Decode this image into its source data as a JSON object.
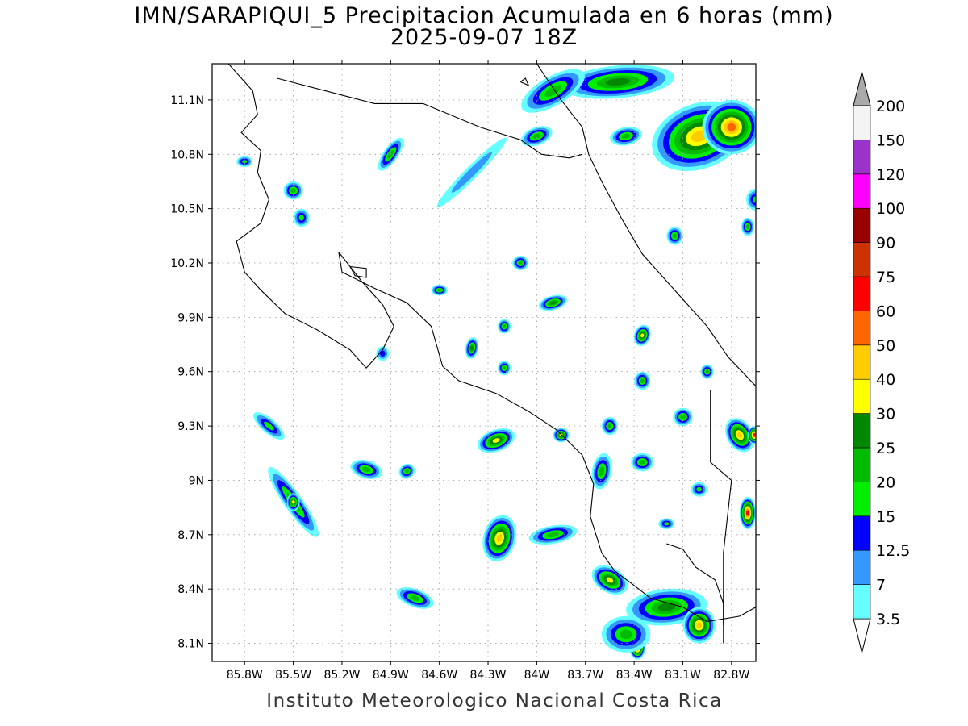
{
  "title": "IMN/SARAPIQUI_5 Precipitacion Acumulada en 6 horas (mm)",
  "subtitle": "2025-09-07 18Z",
  "footer": "Instituto Meteorologico Nacional Costa Rica",
  "map": {
    "lon_range": [
      -86.0,
      -82.65
    ],
    "lat_range": [
      8.0,
      11.3
    ],
    "lon_ticks": [
      {
        "value": -85.8,
        "label": "85.8W"
      },
      {
        "value": -85.5,
        "label": "85.5W"
      },
      {
        "value": -85.2,
        "label": "85.2W"
      },
      {
        "value": -84.9,
        "label": "84.9W"
      },
      {
        "value": -84.6,
        "label": "84.6W"
      },
      {
        "value": -84.3,
        "label": "84.3W"
      },
      {
        "value": -84.0,
        "label": "84W"
      },
      {
        "value": -83.7,
        "label": "83.7W"
      },
      {
        "value": -83.4,
        "label": "83.4W"
      },
      {
        "value": -83.1,
        "label": "83.1W"
      },
      {
        "value": -82.8,
        "label": "82.8W"
      }
    ],
    "lat_ticks": [
      {
        "value": 11.1,
        "label": "11.1N"
      },
      {
        "value": 10.8,
        "label": "10.8N"
      },
      {
        "value": 10.5,
        "label": "10.5N"
      },
      {
        "value": 10.2,
        "label": "10.2N"
      },
      {
        "value": 9.9,
        "label": "9.9N"
      },
      {
        "value": 9.6,
        "label": "9.6N"
      },
      {
        "value": 9.3,
        "label": "9.3N"
      },
      {
        "value": 9.0,
        "label": "9N"
      },
      {
        "value": 8.7,
        "label": "8.7N"
      },
      {
        "value": 8.4,
        "label": "8.4N"
      },
      {
        "value": 8.1,
        "label": "8.1N"
      }
    ],
    "grid": true
  },
  "legend": {
    "levels": [
      {
        "label": "3.5",
        "color": "#66ffff"
      },
      {
        "label": "7",
        "color": "#3399ff"
      },
      {
        "label": "12.5",
        "color": "#0000ff"
      },
      {
        "label": "15",
        "color": "#00ee00"
      },
      {
        "label": "20",
        "color": "#00bb00"
      },
      {
        "label": "25",
        "color": "#008800"
      },
      {
        "label": "30",
        "color": "#ffff00"
      },
      {
        "label": "40",
        "color": "#ffcc00"
      },
      {
        "label": "50",
        "color": "#ff6600"
      },
      {
        "label": "60",
        "color": "#ff0000"
      },
      {
        "label": "75",
        "color": "#cc3300"
      },
      {
        "label": "90",
        "color": "#990000"
      },
      {
        "label": "100",
        "color": "#ff00ff"
      },
      {
        "label": "120",
        "color": "#9933cc"
      },
      {
        "label": "150",
        "color": "#f4f4f4"
      },
      {
        "label": "200",
        "color": "#aaaaaa"
      }
    ],
    "below_color": "#ffffff",
    "above_color": "#aaaaaa"
  },
  "precip_cells": [
    {
      "lon": -83.0,
      "lat": 10.9,
      "rx": 0.3,
      "ry": 0.18,
      "rot": -20,
      "level": 7
    },
    {
      "lon": -82.8,
      "lat": 10.95,
      "rx": 0.18,
      "ry": 0.15,
      "rot": 0,
      "level": 8
    },
    {
      "lon": -83.5,
      "lat": 11.2,
      "rx": 0.35,
      "ry": 0.09,
      "rot": -5,
      "level": 5
    },
    {
      "lon": -83.9,
      "lat": 11.15,
      "rx": 0.22,
      "ry": 0.08,
      "rot": -30,
      "level": 4
    },
    {
      "lon": -84.0,
      "lat": 10.9,
      "rx": 0.1,
      "ry": 0.05,
      "rot": -20,
      "level": 4
    },
    {
      "lon": -84.9,
      "lat": 10.8,
      "rx": 0.12,
      "ry": 0.04,
      "rot": -55,
      "level": 4
    },
    {
      "lon": -85.5,
      "lat": 10.6,
      "rx": 0.06,
      "ry": 0.05,
      "rot": 0,
      "level": 4
    },
    {
      "lon": -84.4,
      "lat": 10.7,
      "rx": 0.3,
      "ry": 0.035,
      "rot": -45,
      "level": 1
    },
    {
      "lon": -84.1,
      "lat": 10.2,
      "rx": 0.05,
      "ry": 0.04,
      "rot": 0,
      "level": 4
    },
    {
      "lon": -83.9,
      "lat": 9.98,
      "rx": 0.09,
      "ry": 0.04,
      "rot": -15,
      "level": 5
    },
    {
      "lon": -84.6,
      "lat": 10.05,
      "rx": 0.05,
      "ry": 0.03,
      "rot": 0,
      "level": 4
    },
    {
      "lon": -84.4,
      "lat": 9.73,
      "rx": 0.04,
      "ry": 0.06,
      "rot": 10,
      "level": 5
    },
    {
      "lon": -84.2,
      "lat": 9.85,
      "rx": 0.04,
      "ry": 0.04,
      "rot": 0,
      "level": 4
    },
    {
      "lon": -84.2,
      "lat": 9.62,
      "rx": 0.04,
      "ry": 0.04,
      "rot": 0,
      "level": 4
    },
    {
      "lon": -83.35,
      "lat": 9.8,
      "rx": 0.05,
      "ry": 0.06,
      "rot": 20,
      "level": 6
    },
    {
      "lon": -83.35,
      "lat": 9.55,
      "rx": 0.05,
      "ry": 0.05,
      "rot": 0,
      "level": 4
    },
    {
      "lon": -83.1,
      "lat": 9.35,
      "rx": 0.06,
      "ry": 0.05,
      "rot": 0,
      "level": 4
    },
    {
      "lon": -82.75,
      "lat": 9.25,
      "rx": 0.08,
      "ry": 0.1,
      "rot": -30,
      "level": 7
    },
    {
      "lon": -82.66,
      "lat": 9.25,
      "rx": 0.04,
      "ry": 0.05,
      "rot": 0,
      "level": 9
    },
    {
      "lon": -82.7,
      "lat": 8.82,
      "rx": 0.05,
      "ry": 0.09,
      "rot": 0,
      "level": 9
    },
    {
      "lon": -84.25,
      "lat": 9.22,
      "rx": 0.12,
      "ry": 0.06,
      "rot": -20,
      "level": 6
    },
    {
      "lon": -83.85,
      "lat": 9.25,
      "rx": 0.05,
      "ry": 0.04,
      "rot": 0,
      "level": 6
    },
    {
      "lon": -83.6,
      "lat": 9.05,
      "rx": 0.06,
      "ry": 0.1,
      "rot": 10,
      "level": 4
    },
    {
      "lon": -83.9,
      "lat": 8.7,
      "rx": 0.15,
      "ry": 0.05,
      "rot": -10,
      "level": 4
    },
    {
      "lon": -84.23,
      "lat": 8.68,
      "rx": 0.1,
      "ry": 0.13,
      "rot": 15,
      "level": 7
    },
    {
      "lon": -85.5,
      "lat": 8.88,
      "rx": 0.26,
      "ry": 0.05,
      "rot": 55,
      "level": 4
    },
    {
      "lon": -85.5,
      "lat": 8.88,
      "rx": 0.04,
      "ry": 0.05,
      "rot": 0,
      "level": 6
    },
    {
      "lon": -85.05,
      "lat": 9.06,
      "rx": 0.1,
      "ry": 0.05,
      "rot": 15,
      "level": 4
    },
    {
      "lon": -84.8,
      "lat": 9.05,
      "rx": 0.05,
      "ry": 0.04,
      "rot": -30,
      "level": 4
    },
    {
      "lon": -85.65,
      "lat": 9.3,
      "rx": 0.12,
      "ry": 0.04,
      "rot": 40,
      "level": 3
    },
    {
      "lon": -84.75,
      "lat": 8.35,
      "rx": 0.12,
      "ry": 0.05,
      "rot": 20,
      "level": 4
    },
    {
      "lon": -83.55,
      "lat": 8.45,
      "rx": 0.12,
      "ry": 0.07,
      "rot": 30,
      "level": 6
    },
    {
      "lon": -83.2,
      "lat": 8.3,
      "rx": 0.25,
      "ry": 0.1,
      "rot": -5,
      "level": 5
    },
    {
      "lon": -83.0,
      "lat": 8.2,
      "rx": 0.1,
      "ry": 0.1,
      "rot": 0,
      "level": 7
    },
    {
      "lon": -83.38,
      "lat": 8.08,
      "rx": 0.05,
      "ry": 0.07,
      "rot": 0,
      "level": 9
    },
    {
      "lon": -83.45,
      "lat": 8.15,
      "rx": 0.15,
      "ry": 0.1,
      "rot": 0,
      "level": 4
    },
    {
      "lon": -83.35,
      "lat": 9.1,
      "rx": 0.07,
      "ry": 0.05,
      "rot": 0,
      "level": 4
    },
    {
      "lon": -83.55,
      "lat": 9.3,
      "rx": 0.05,
      "ry": 0.05,
      "rot": 0,
      "level": 4
    },
    {
      "lon": -82.95,
      "lat": 9.6,
      "rx": 0.04,
      "ry": 0.04,
      "rot": 0,
      "level": 4
    },
    {
      "lon": -83.15,
      "lat": 10.35,
      "rx": 0.05,
      "ry": 0.05,
      "rot": 0,
      "level": 4
    },
    {
      "lon": -82.7,
      "lat": 10.4,
      "rx": 0.04,
      "ry": 0.05,
      "rot": 0,
      "level": 4
    },
    {
      "lon": -83.0,
      "lat": 8.95,
      "rx": 0.05,
      "ry": 0.04,
      "rot": 0,
      "level": 3
    },
    {
      "lon": -84.95,
      "lat": 9.7,
      "rx": 0.04,
      "ry": 0.04,
      "rot": 0,
      "level": 2
    },
    {
      "lon": -85.8,
      "lat": 10.76,
      "rx": 0.05,
      "ry": 0.03,
      "rot": 0,
      "level": 3
    },
    {
      "lon": -85.45,
      "lat": 10.45,
      "rx": 0.05,
      "ry": 0.05,
      "rot": 0,
      "level": 3
    },
    {
      "lon": -83.45,
      "lat": 10.9,
      "rx": 0.1,
      "ry": 0.05,
      "rot": -10,
      "level": 4
    },
    {
      "lon": -82.65,
      "lat": 10.55,
      "rx": 0.06,
      "ry": 0.06,
      "rot": 0,
      "level": 3
    },
    {
      "lon": -83.2,
      "lat": 8.76,
      "rx": 0.05,
      "ry": 0.03,
      "rot": 0,
      "level": 3
    }
  ],
  "coastlines": [
    [
      [
        -85.9,
        11.3
      ],
      [
        -85.75,
        11.15
      ],
      [
        -85.72,
        11.02
      ],
      [
        -85.82,
        10.92
      ],
      [
        -85.7,
        10.82
      ],
      [
        -85.72,
        10.7
      ],
      [
        -85.65,
        10.55
      ],
      [
        -85.7,
        10.42
      ],
      [
        -85.85,
        10.32
      ],
      [
        -85.8,
        10.15
      ],
      [
        -85.7,
        10.05
      ],
      [
        -85.55,
        9.92
      ],
      [
        -85.35,
        9.83
      ],
      [
        -85.15,
        9.72
      ],
      [
        -85.05,
        9.62
      ],
      [
        -84.95,
        9.72
      ],
      [
        -84.88,
        9.85
      ],
      [
        -84.95,
        9.97
      ],
      [
        -85.08,
        10.1
      ],
      [
        -85.22,
        10.26
      ],
      [
        -85.2,
        10.15
      ],
      [
        -85.0,
        10.06
      ],
      [
        -84.8,
        9.98
      ],
      [
        -84.65,
        9.85
      ],
      [
        -84.58,
        9.63
      ],
      [
        -84.48,
        9.55
      ],
      [
        -84.25,
        9.48
      ],
      [
        -84.05,
        9.38
      ],
      [
        -83.88,
        9.28
      ],
      [
        -83.72,
        9.14
      ],
      [
        -83.65,
        8.98
      ],
      [
        -83.67,
        8.8
      ],
      [
        -83.6,
        8.6
      ],
      [
        -83.52,
        8.5
      ],
      [
        -83.4,
        8.42
      ],
      [
        -83.3,
        8.35
      ],
      [
        -83.1,
        8.3
      ],
      [
        -82.95,
        8.22
      ],
      [
        -82.75,
        8.25
      ],
      [
        -82.65,
        8.3
      ]
    ],
    [
      [
        -84.0,
        11.3
      ],
      [
        -83.85,
        11.1
      ],
      [
        -83.72,
        10.95
      ],
      [
        -83.68,
        10.8
      ],
      [
        -83.6,
        10.65
      ],
      [
        -83.48,
        10.45
      ],
      [
        -83.35,
        10.25
      ],
      [
        -83.15,
        10.05
      ],
      [
        -82.95,
        9.85
      ],
      [
        -82.82,
        9.68
      ],
      [
        -82.65,
        9.52
      ]
    ],
    [
      [
        -83.2,
        8.65
      ],
      [
        -83.1,
        8.62
      ],
      [
        -83.02,
        8.52
      ],
      [
        -82.9,
        8.45
      ],
      [
        -82.85,
        8.32
      ],
      [
        -82.85,
        8.1
      ]
    ],
    [
      [
        -85.15,
        10.18
      ],
      [
        -85.12,
        10.13
      ],
      [
        -85.05,
        10.12
      ],
      [
        -85.05,
        10.17
      ],
      [
        -85.15,
        10.18
      ]
    ],
    [
      [
        -84.1,
        11.2
      ],
      [
        -84.05,
        11.18
      ],
      [
        -84.07,
        11.22
      ],
      [
        -84.1,
        11.2
      ]
    ]
  ],
  "borders": [
    [
      [
        -85.6,
        11.22
      ],
      [
        -85.3,
        11.15
      ],
      [
        -85.0,
        11.08
      ],
      [
        -84.7,
        11.08
      ],
      [
        -84.35,
        10.95
      ],
      [
        -84.1,
        10.88
      ],
      [
        -83.97,
        10.8
      ],
      [
        -83.8,
        10.78
      ],
      [
        -83.72,
        10.8
      ]
    ],
    [
      [
        -82.93,
        9.5
      ],
      [
        -82.93,
        9.1
      ],
      [
        -82.8,
        9.0
      ],
      [
        -82.85,
        8.6
      ],
      [
        -82.85,
        8.2
      ]
    ]
  ]
}
